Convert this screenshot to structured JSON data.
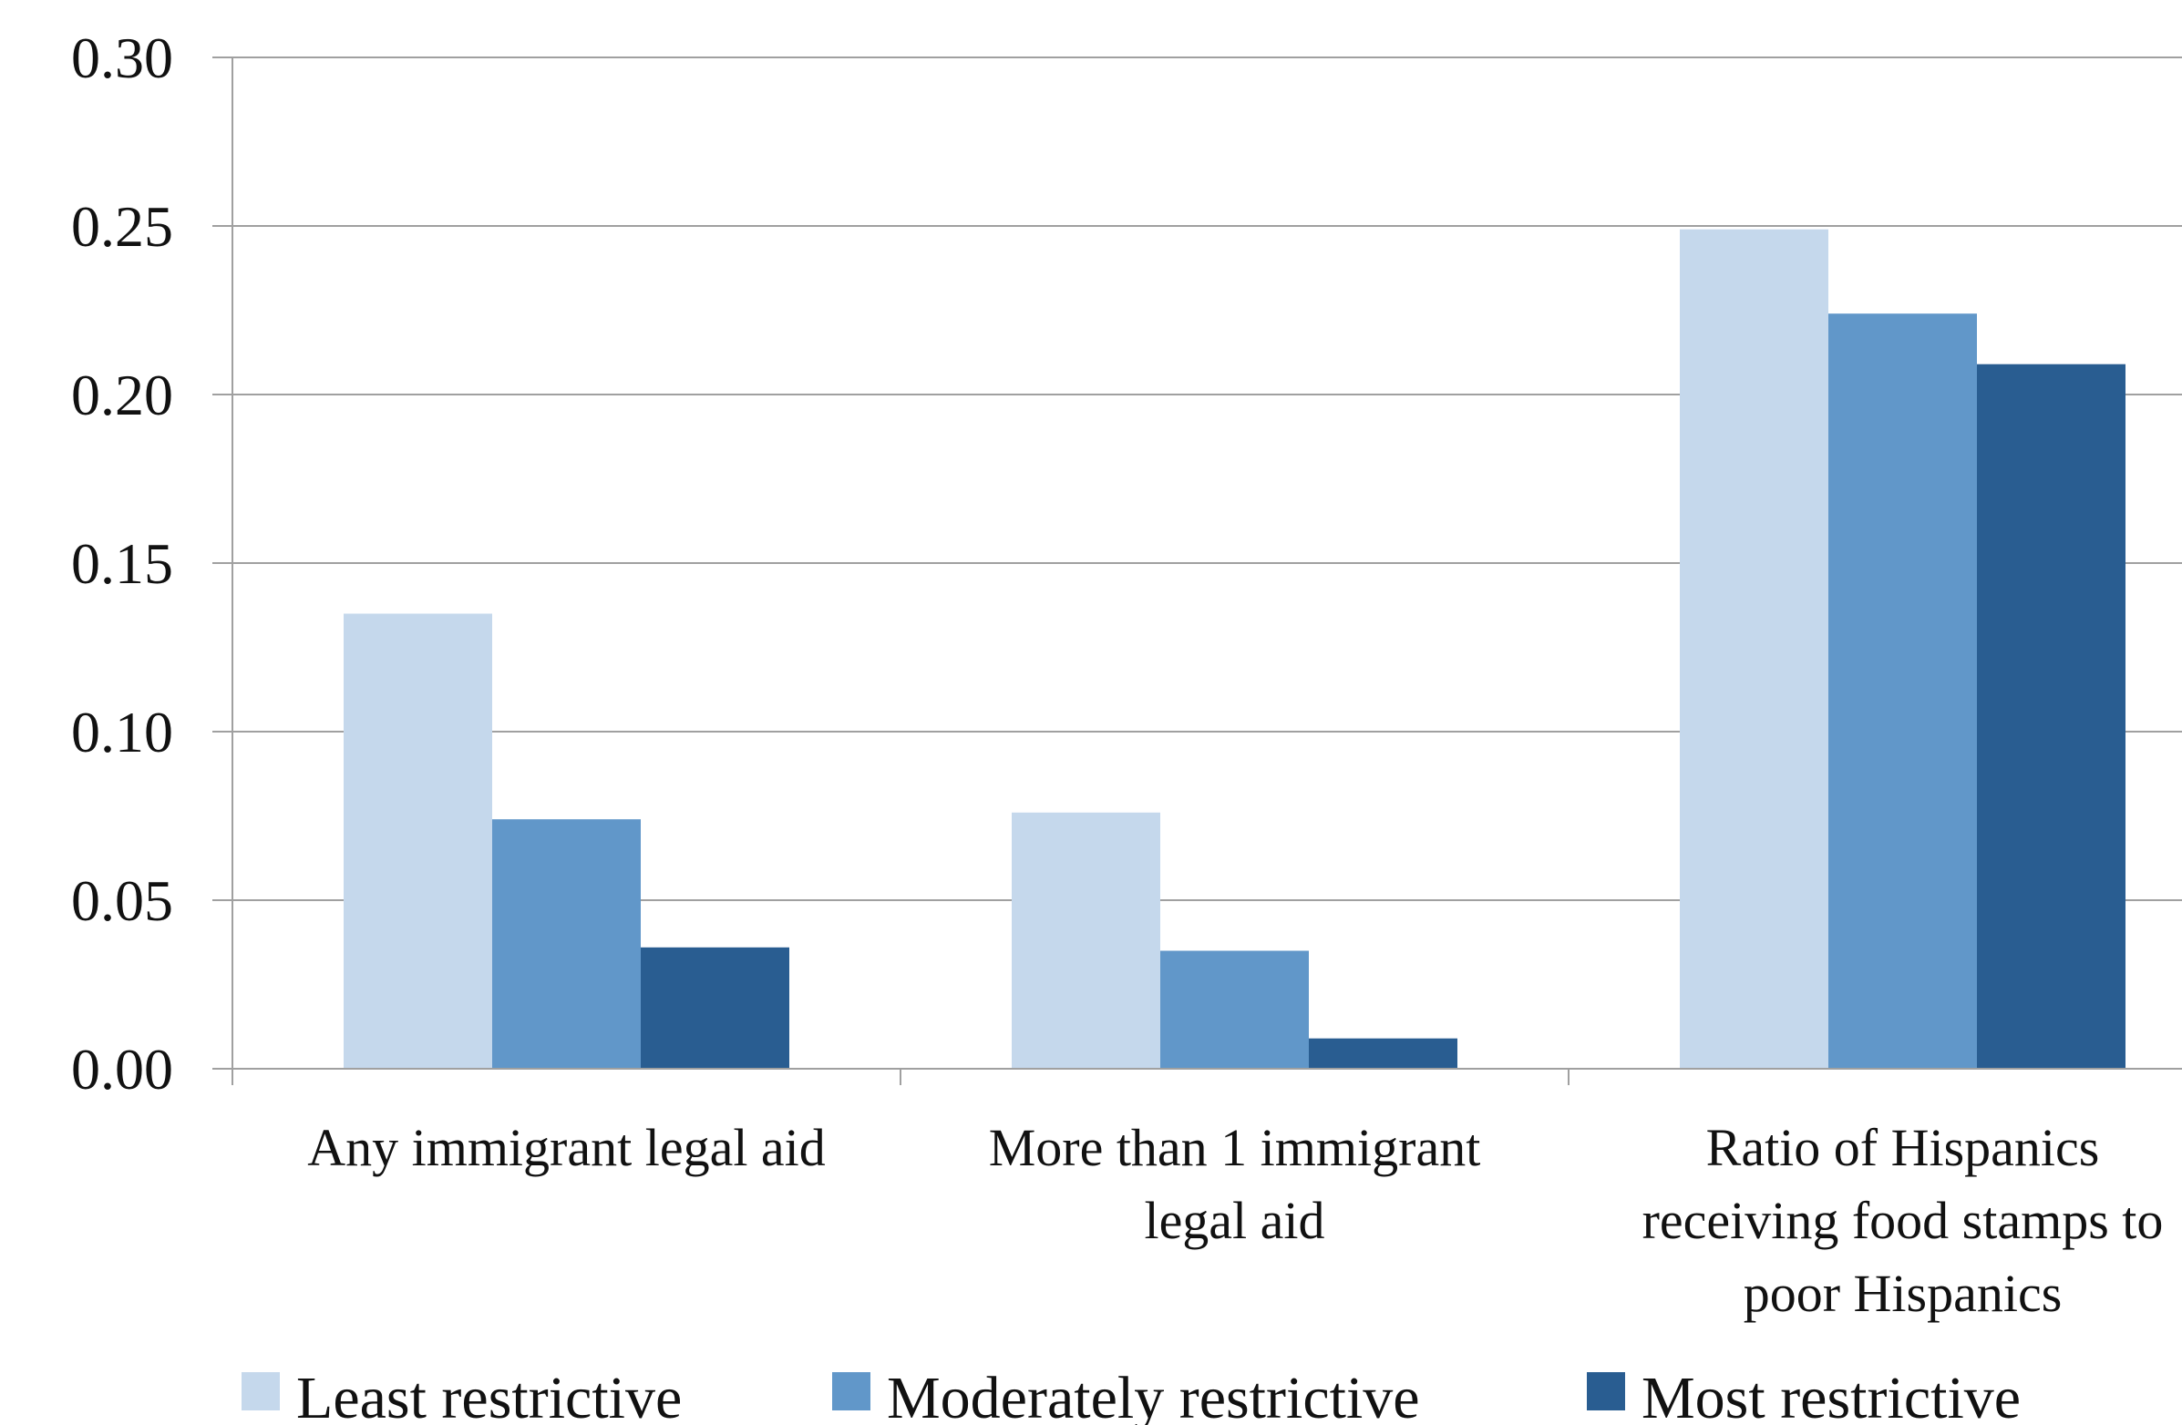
{
  "chart_data": {
    "type": "bar",
    "title": "",
    "xlabel": "",
    "ylabel": "",
    "ylim": [
      0,
      0.3
    ],
    "yticks": [
      "0.00",
      "0.05",
      "0.10",
      "0.15",
      "0.20",
      "0.25",
      "0.30"
    ],
    "grid": true,
    "legend_position": "bottom",
    "categories": [
      [
        "Any immigrant legal aid"
      ],
      [
        "More than 1 immigrant",
        "legal aid"
      ],
      [
        "Ratio of Hispanics",
        "receiving food stamps to",
        "poor Hispanics"
      ]
    ],
    "series": [
      {
        "name": "Least restrictive",
        "color": "#c5d8ec",
        "values": [
          0.135,
          0.076,
          0.249
        ]
      },
      {
        "name": "Moderately restrictive",
        "color": "#6197c9",
        "values": [
          0.074,
          0.035,
          0.224
        ]
      },
      {
        "name": "Most restrictive",
        "color": "#295d91",
        "values": [
          0.036,
          0.009,
          0.209
        ]
      }
    ]
  }
}
